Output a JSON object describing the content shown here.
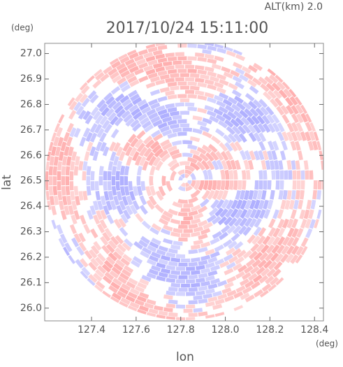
{
  "chart_data": {
    "type": "radar-ppi",
    "title": "2017/10/24 15:11:00",
    "subtitle": "ALT(km) 2.0",
    "y_unit": "(deg)",
    "x_unit": "(deg)",
    "ylabel": "lat",
    "xlabel": "lon",
    "xlim": [
      127.19,
      128.44
    ],
    "ylim": [
      25.95,
      27.04
    ],
    "xticks": [
      127.4,
      127.6,
      127.8,
      {
        "value": 128,
        "label": "128.0"
      },
      128.2,
      128.4
    ],
    "yticks": [
      {
        "value": 26,
        "label": "26.0"
      },
      26.1,
      26.2,
      26.3,
      26.4,
      26.5,
      26.6,
      26.7,
      26.8,
      26.9,
      {
        "value": 27,
        "label": "27.0"
      }
    ]
  }
}
